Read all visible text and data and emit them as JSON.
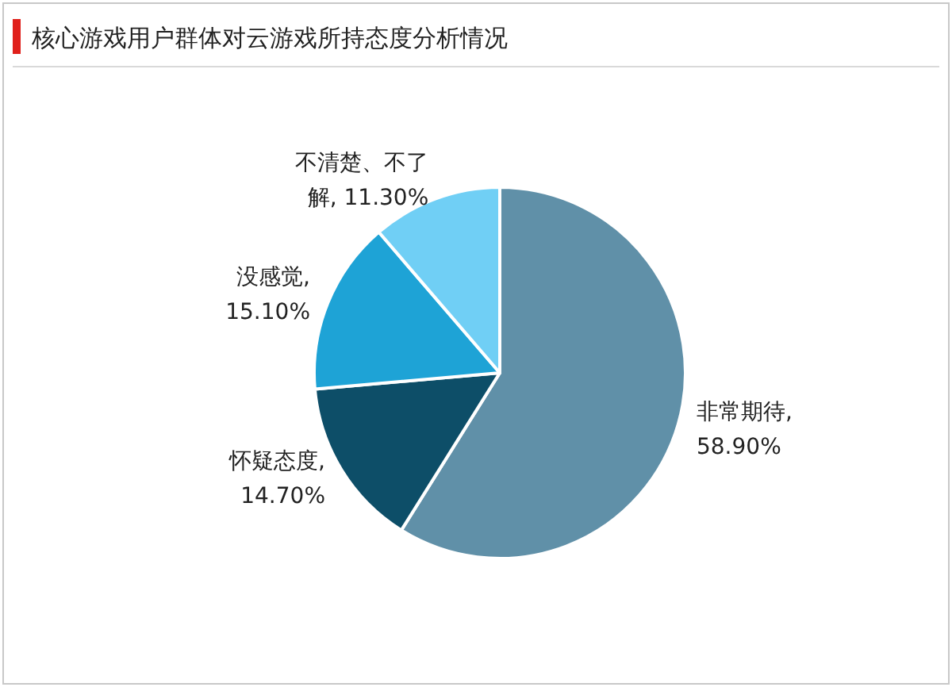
{
  "chart_data": {
    "type": "pie",
    "title": "核心游戏用户群体对云游戏所持态度分析情况",
    "categories": [
      "非常期待",
      "怀疑态度",
      "没感觉",
      "不清楚、不了解"
    ],
    "values": [
      58.9,
      14.7,
      15.1,
      11.3
    ],
    "value_labels": [
      ", 58.90%",
      ", 14.70%",
      ", 15.10%",
      ", 11.30%"
    ],
    "colors": [
      "#6090a8",
      "#0d4e68",
      "#1ea3d6",
      "#70cff5"
    ]
  }
}
